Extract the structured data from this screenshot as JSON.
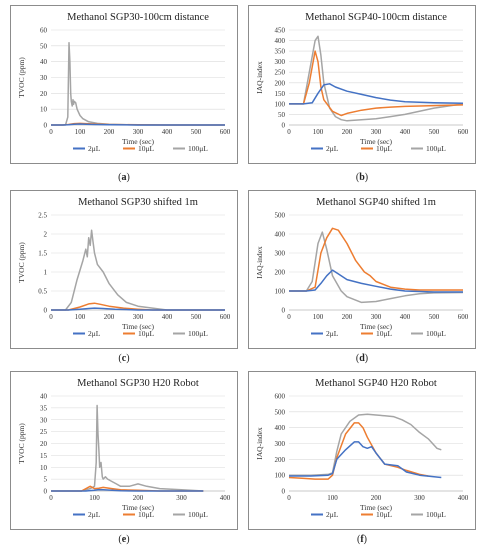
{
  "colors": {
    "2uL": "#4472c4",
    "10uL": "#ed7d31",
    "100uL": "#a5a5a5"
  },
  "panels": [
    {
      "sub_label": "a"
    },
    {
      "sub_label": "b"
    },
    {
      "sub_label": "c"
    },
    {
      "sub_label": "d"
    },
    {
      "sub_label": "e"
    },
    {
      "sub_label": "f"
    }
  ],
  "chart_data": [
    {
      "type": "line",
      "title": "Methanol SGP30-100cm distance",
      "xlabel": "Time (sec)",
      "ylabel": "TVOC (ppm)",
      "xlim": [
        0,
        600
      ],
      "ylim": [
        0,
        60
      ],
      "xticks": [
        "0",
        "100",
        "200",
        "300",
        "400",
        "500",
        "600"
      ],
      "yticks": [
        "0",
        "10",
        "20",
        "30",
        "40",
        "50",
        "60"
      ],
      "grid": true,
      "legend_position": "bottom",
      "series": [
        {
          "name": "2μL",
          "x": [
            0,
            40,
            60,
            80,
            100,
            120,
            150,
            200,
            300,
            400,
            600
          ],
          "y": [
            0,
            0,
            0.2,
            0.5,
            0.6,
            0.5,
            0.3,
            0.1,
            0,
            0,
            0
          ]
        },
        {
          "name": "10μL",
          "x": [
            0,
            40,
            60,
            80,
            100,
            120,
            150,
            200,
            300,
            400,
            600
          ],
          "y": [
            0,
            0,
            0.3,
            0.9,
            1.0,
            0.9,
            0.6,
            0.3,
            0.1,
            0,
            0
          ]
        },
        {
          "name": "100μL",
          "x": [
            0,
            50,
            58,
            62,
            65,
            68,
            70,
            73,
            76,
            78,
            80,
            85,
            90,
            100,
            110,
            130,
            160,
            200,
            300,
            400,
            600
          ],
          "y": [
            0,
            0,
            5,
            52,
            40,
            20,
            15,
            12,
            16,
            13,
            15,
            14,
            10,
            6,
            4,
            2,
            1,
            0.5,
            0,
            0,
            0
          ]
        }
      ]
    },
    {
      "type": "line",
      "title": "Methanol SGP40-100cm distance",
      "xlabel": "Time (sec)",
      "ylabel": "IAQ-index",
      "xlim": [
        0,
        600
      ],
      "ylim": [
        0,
        450
      ],
      "xticks": [
        "0",
        "100",
        "200",
        "300",
        "400",
        "500",
        "600"
      ],
      "yticks": [
        "0",
        "50",
        "100",
        "150",
        "200",
        "250",
        "300",
        "350",
        "400",
        "450"
      ],
      "grid": true,
      "legend_position": "bottom",
      "series": [
        {
          "name": "2μL",
          "x": [
            0,
            50,
            80,
            100,
            120,
            140,
            160,
            200,
            250,
            300,
            350,
            400,
            500,
            600
          ],
          "y": [
            100,
            100,
            105,
            150,
            190,
            195,
            180,
            160,
            145,
            130,
            118,
            110,
            105,
            103
          ]
        },
        {
          "name": "10μL",
          "x": [
            0,
            50,
            70,
            90,
            100,
            110,
            120,
            150,
            180,
            200,
            250,
            300,
            350,
            400,
            500,
            600
          ],
          "y": [
            100,
            100,
            200,
            350,
            300,
            180,
            120,
            65,
            45,
            55,
            70,
            80,
            85,
            88,
            92,
            95
          ]
        },
        {
          "name": "100μL",
          "x": [
            0,
            50,
            70,
            90,
            100,
            110,
            120,
            140,
            160,
            180,
            200,
            250,
            300,
            350,
            400,
            500,
            600
          ],
          "y": [
            100,
            100,
            250,
            400,
            420,
            330,
            200,
            80,
            40,
            25,
            20,
            25,
            30,
            40,
            50,
            80,
            100
          ]
        }
      ]
    },
    {
      "type": "line",
      "title": "Methanol SGP30 shifted 1m",
      "xlabel": "Time (sec)",
      "ylabel": "TVOC (ppm)",
      "xlim": [
        0,
        600
      ],
      "ylim": [
        0,
        2.5
      ],
      "xticks": [
        "0",
        "100",
        "200",
        "300",
        "400",
        "500",
        "600"
      ],
      "yticks": [
        "0",
        "0.5",
        "1",
        "1.5",
        "2",
        "2.5"
      ],
      "grid": true,
      "legend_position": "bottom",
      "series": [
        {
          "name": "2μL",
          "x": [
            0,
            60,
            100,
            130,
            150,
            180,
            220,
            300,
            600
          ],
          "y": [
            0,
            0,
            0.02,
            0.04,
            0.05,
            0.04,
            0.02,
            0,
            0
          ]
        },
        {
          "name": "10μL",
          "x": [
            0,
            60,
            100,
            130,
            150,
            170,
            200,
            250,
            300,
            350,
            600
          ],
          "y": [
            0,
            0,
            0.08,
            0.16,
            0.18,
            0.15,
            0.1,
            0.05,
            0.02,
            0,
            0
          ]
        },
        {
          "name": "100μL",
          "x": [
            0,
            50,
            70,
            90,
            110,
            120,
            125,
            130,
            135,
            140,
            145,
            150,
            160,
            180,
            200,
            230,
            260,
            300,
            350,
            400,
            600
          ],
          "y": [
            0,
            0,
            0.2,
            0.8,
            1.3,
            1.6,
            1.4,
            1.9,
            1.7,
            2.1,
            1.8,
            1.5,
            1.2,
            1.0,
            0.7,
            0.4,
            0.2,
            0.1,
            0.05,
            0,
            0
          ]
        }
      ]
    },
    {
      "type": "line",
      "title": "Methanol SGP40 shifted 1m",
      "xlabel": "Time (sec)",
      "ylabel": "IAQ-index",
      "xlim": [
        0,
        600
      ],
      "ylim": [
        0,
        500
      ],
      "xticks": [
        "0",
        "100",
        "200",
        "300",
        "400",
        "500",
        "600"
      ],
      "yticks": [
        "0",
        "100",
        "200",
        "300",
        "400",
        "500"
      ],
      "grid": true,
      "legend_position": "bottom",
      "series": [
        {
          "name": "2μL",
          "x": [
            0,
            60,
            90,
            110,
            130,
            150,
            170,
            200,
            250,
            300,
            350,
            400,
            500,
            600
          ],
          "y": [
            100,
            100,
            105,
            140,
            180,
            210,
            190,
            160,
            140,
            125,
            110,
            100,
            95,
            95
          ]
        },
        {
          "name": "10μL",
          "x": [
            0,
            60,
            90,
            110,
            130,
            150,
            170,
            200,
            230,
            260,
            280,
            300,
            350,
            400,
            450,
            500,
            600
          ],
          "y": [
            100,
            100,
            120,
            300,
            380,
            430,
            420,
            350,
            260,
            200,
            180,
            150,
            120,
            110,
            105,
            105,
            105
          ]
        },
        {
          "name": "100μL",
          "x": [
            0,
            60,
            80,
            100,
            115,
            130,
            150,
            180,
            200,
            250,
            300,
            350,
            400,
            450,
            500,
            600
          ],
          "y": [
            100,
            100,
            150,
            350,
            410,
            320,
            180,
            100,
            70,
            40,
            45,
            60,
            75,
            85,
            90,
            92
          ]
        }
      ]
    },
    {
      "type": "line",
      "title": "Methanol SGP30 H20 Robot",
      "xlabel": "Time (sec)",
      "ylabel": "TVOC (ppm)",
      "xlim": [
        0,
        400
      ],
      "ylim": [
        0,
        40
      ],
      "xticks": [
        "0",
        "100",
        "200",
        "300",
        "400"
      ],
      "yticks": [
        "0",
        "5",
        "10",
        "15",
        "20",
        "25",
        "30",
        "35",
        "40"
      ],
      "grid": true,
      "legend_position": "bottom",
      "series": [
        {
          "name": "2μL",
          "x": [
            0,
            80,
            100,
            110,
            120,
            140,
            160,
            200,
            250,
            350
          ],
          "y": [
            0,
            0,
            0.3,
            0.6,
            0.5,
            0.3,
            0.1,
            0,
            0,
            0
          ]
        },
        {
          "name": "10μL",
          "x": [
            0,
            70,
            90,
            100,
            110,
            120,
            140,
            160,
            200,
            250,
            350
          ],
          "y": [
            0,
            0,
            2,
            1,
            1.2,
            1.5,
            1,
            0.5,
            0.3,
            0,
            0
          ]
        },
        {
          "name": "100μL",
          "x": [
            0,
            70,
            90,
            100,
            104,
            106,
            108,
            110,
            112,
            115,
            118,
            120,
            125,
            130,
            140,
            150,
            160,
            180,
            200,
            220,
            250,
            300,
            350
          ],
          "y": [
            0,
            0,
            1,
            2,
            12,
            36,
            24,
            18,
            10,
            12,
            6,
            5,
            6,
            5,
            4,
            3,
            2,
            2,
            3,
            2,
            1,
            0.5,
            0
          ]
        }
      ]
    },
    {
      "type": "line",
      "title": "Methanol SGP40 H20 Robot",
      "xlabel": "Time (sec)",
      "ylabel": "IAQ-index",
      "xlim": [
        0,
        400
      ],
      "ylim": [
        0,
        600
      ],
      "xticks": [
        "0",
        "100",
        "200",
        "300",
        "400"
      ],
      "yticks": [
        "0",
        "100",
        "200",
        "300",
        "400",
        "500",
        "600"
      ],
      "grid": true,
      "legend_position": "bottom",
      "series": [
        {
          "name": "2μL",
          "x": [
            0,
            50,
            90,
            100,
            110,
            130,
            150,
            160,
            170,
            180,
            190,
            200,
            220,
            250,
            270,
            300,
            350
          ],
          "y": [
            95,
            95,
            100,
            110,
            200,
            260,
            310,
            310,
            280,
            270,
            280,
            240,
            170,
            160,
            120,
            100,
            85
          ]
        },
        {
          "name": "10μL",
          "x": [
            0,
            30,
            60,
            90,
            100,
            110,
            130,
            150,
            160,
            170,
            180,
            200,
            220,
            250,
            270,
            300,
            320
          ],
          "y": [
            85,
            80,
            75,
            75,
            100,
            210,
            360,
            430,
            430,
            400,
            340,
            240,
            170,
            150,
            130,
            105,
            95
          ]
        },
        {
          "name": "100μL",
          "x": [
            0,
            50,
            90,
            100,
            110,
            120,
            140,
            160,
            180,
            200,
            220,
            240,
            260,
            280,
            300,
            320,
            340,
            350
          ],
          "y": [
            100,
            100,
            105,
            115,
            250,
            360,
            440,
            480,
            485,
            480,
            475,
            470,
            450,
            420,
            370,
            330,
            270,
            260
          ]
        }
      ]
    }
  ]
}
